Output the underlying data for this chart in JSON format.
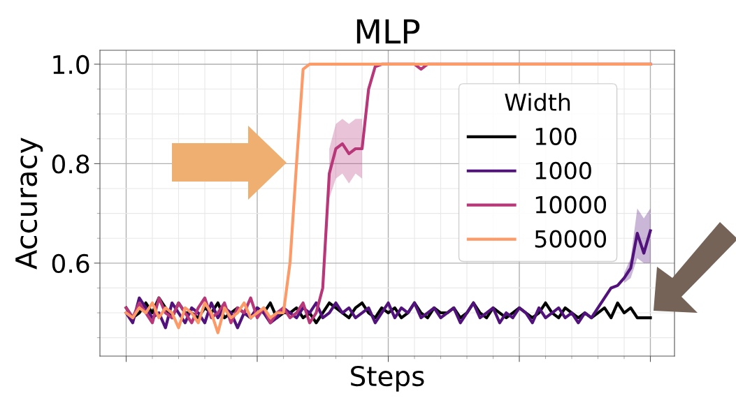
{
  "chart_data": {
    "type": "line",
    "title": "MLP",
    "xlabel": "Steps",
    "ylabel": "Accuracy",
    "legend_title": "Width",
    "categories": [
      null,
      null,
      null,
      null,
      null,
      null,
      null,
      null,
      null,
      null,
      null,
      null,
      null,
      null,
      null,
      null,
      null,
      null,
      null,
      null,
      null,
      null,
      null,
      null,
      null,
      null,
      null,
      null,
      null,
      null,
      null,
      null,
      null,
      null,
      null,
      null,
      null,
      null,
      null,
      null,
      null,
      null,
      null,
      null,
      null,
      null,
      null,
      null,
      null,
      null,
      null,
      null,
      null,
      null,
      null,
      null,
      null,
      null,
      null,
      null,
      null,
      null,
      null,
      null,
      null,
      null,
      null,
      null,
      null,
      null,
      null,
      null,
      null,
      null,
      null,
      null,
      null,
      null,
      null,
      null,
      null
    ],
    "ylim": [
      0.413,
      1.028
    ],
    "yticks": [
      {
        "value": 0.45,
        "label": null
      },
      {
        "value": 0.5,
        "label": null
      },
      {
        "value": 0.55,
        "label": null
      },
      0.6,
      {
        "value": 0.65,
        "label": null
      },
      {
        "value": 0.7,
        "label": null
      },
      {
        "value": 0.75,
        "label": null
      },
      0.8,
      {
        "value": 0.85,
        "label": null
      },
      {
        "value": 0.9,
        "label": null
      },
      {
        "value": 0.95,
        "label": null
      },
      {
        "value": 1.0,
        "label": "1.0"
      }
    ],
    "grid": true,
    "legend": "right",
    "line_style": "solid",
    "marker": "none",
    "series": [
      {
        "name": "100",
        "color": "#000000",
        "values": [
          0.51,
          0.49,
          0.5,
          0.52,
          0.5,
          0.53,
          0.51,
          0.49,
          0.52,
          0.5,
          0.5,
          0.49,
          0.51,
          0.5,
          0.52,
          0.49,
          0.5,
          0.51,
          0.5,
          0.49,
          0.51,
          0.5,
          0.52,
          0.49,
          0.5,
          0.5,
          0.51,
          0.49,
          0.5,
          0.48,
          0.5,
          0.52,
          0.51,
          0.5,
          0.49,
          0.51,
          0.52,
          0.5,
          0.49,
          0.51,
          0.5,
          0.51,
          0.49,
          0.5,
          0.52,
          0.5,
          0.49,
          0.51,
          0.5,
          0.5,
          0.51,
          0.49,
          0.5,
          0.52,
          0.5,
          0.49,
          0.51,
          0.5,
          0.49,
          0.5,
          0.51,
          0.5,
          0.49,
          0.5,
          0.52,
          0.5,
          0.49,
          0.51,
          0.5,
          0.49,
          0.5,
          0.49,
          0.5,
          0.51,
          0.49,
          0.52,
          0.5,
          0.51,
          0.49,
          0.49,
          0.49
        ]
      },
      {
        "name": "1000",
        "color": "#51127c",
        "values": [
          0.5,
          0.48,
          0.53,
          0.51,
          0.49,
          0.5,
          0.47,
          0.52,
          0.5,
          0.48,
          0.51,
          0.5,
          0.48,
          0.52,
          0.49,
          0.51,
          0.5,
          0.47,
          0.5,
          0.49,
          0.51,
          0.5,
          0.48,
          0.49,
          0.51,
          0.5,
          0.49,
          0.51,
          0.5,
          0.52,
          0.49,
          0.5,
          0.52,
          0.5,
          0.51,
          0.49,
          0.5,
          0.51,
          0.48,
          0.5,
          0.52,
          0.49,
          0.51,
          0.5,
          0.52,
          0.49,
          0.5,
          0.51,
          0.49,
          0.5,
          0.51,
          0.48,
          0.5,
          0.52,
          0.49,
          0.5,
          0.51,
          0.48,
          0.5,
          0.49,
          0.51,
          0.5,
          0.48,
          0.51,
          0.49,
          0.5,
          0.51,
          0.49,
          0.5,
          0.48,
          0.5,
          0.49,
          0.51,
          0.53,
          0.55,
          0.555,
          0.57,
          0.59,
          0.66,
          0.62,
          0.665
        ],
        "lower": [
          null,
          null,
          null,
          null,
          null,
          null,
          null,
          null,
          null,
          null,
          null,
          null,
          null,
          null,
          null,
          null,
          null,
          null,
          null,
          null,
          null,
          null,
          null,
          null,
          null,
          null,
          null,
          null,
          null,
          null,
          null,
          null,
          null,
          null,
          null,
          null,
          null,
          null,
          null,
          null,
          null,
          null,
          null,
          null,
          null,
          null,
          null,
          null,
          null,
          null,
          null,
          null,
          null,
          null,
          null,
          null,
          null,
          null,
          null,
          null,
          null,
          null,
          null,
          null,
          null,
          null,
          null,
          null,
          null,
          null,
          null,
          null,
          null,
          null,
          null,
          null,
          0.56,
          0.57,
          0.61,
          0.6,
          0.6
        ],
        "upper": [
          null,
          null,
          null,
          null,
          null,
          null,
          null,
          null,
          null,
          null,
          null,
          null,
          null,
          null,
          null,
          null,
          null,
          null,
          null,
          null,
          null,
          null,
          null,
          null,
          null,
          null,
          null,
          null,
          null,
          null,
          null,
          null,
          null,
          null,
          null,
          null,
          null,
          null,
          null,
          null,
          null,
          null,
          null,
          null,
          null,
          null,
          null,
          null,
          null,
          null,
          null,
          null,
          null,
          null,
          null,
          null,
          null,
          null,
          null,
          null,
          null,
          null,
          null,
          null,
          null,
          null,
          null,
          null,
          null,
          null,
          null,
          null,
          null,
          null,
          null,
          null,
          0.58,
          0.61,
          0.71,
          0.69,
          0.71
        ]
      },
      {
        "name": "10000",
        "color": "#b73779",
        "values": [
          0.51,
          0.49,
          0.52,
          0.5,
          0.48,
          0.53,
          0.5,
          0.49,
          0.52,
          0.5,
          0.48,
          0.51,
          0.53,
          0.49,
          0.5,
          0.52,
          0.48,
          0.51,
          0.5,
          0.53,
          0.49,
          0.51,
          0.48,
          0.5,
          0.51,
          0.49,
          0.5,
          0.52,
          0.48,
          0.5,
          0.55,
          0.78,
          0.83,
          0.84,
          0.82,
          0.83,
          0.83,
          0.95,
          0.995,
          1.0,
          1.0,
          1.0,
          1.0,
          1.0,
          1.0,
          0.99,
          1.0,
          1.0,
          1.0,
          1.0,
          1.0,
          1.0,
          1.0,
          1.0,
          1.0,
          1.0,
          1.0,
          1.0,
          1.0,
          1.0,
          1.0,
          1.0,
          1.0,
          1.0,
          1.0,
          1.0,
          1.0,
          1.0,
          1.0,
          1.0,
          1.0,
          1.0,
          1.0,
          1.0,
          1.0,
          1.0,
          1.0,
          1.0,
          1.0,
          1.0,
          1.0
        ],
        "lower": [
          null,
          null,
          null,
          null,
          null,
          null,
          null,
          null,
          null,
          null,
          null,
          null,
          null,
          null,
          null,
          null,
          null,
          null,
          null,
          null,
          null,
          null,
          null,
          null,
          null,
          null,
          null,
          null,
          null,
          null,
          null,
          0.73,
          0.77,
          0.78,
          0.76,
          0.78,
          0.77,
          null,
          null,
          null,
          null,
          null,
          null,
          null,
          null,
          null,
          null,
          null,
          null,
          null,
          null,
          null,
          null,
          null,
          null,
          null,
          null,
          null,
          null,
          null,
          null,
          null,
          null,
          null,
          null,
          null,
          null,
          null,
          null,
          null,
          null,
          null,
          null,
          null,
          null,
          null,
          null,
          null,
          null,
          null,
          null
        ],
        "upper": [
          null,
          null,
          null,
          null,
          null,
          null,
          null,
          null,
          null,
          null,
          null,
          null,
          null,
          null,
          null,
          null,
          null,
          null,
          null,
          null,
          null,
          null,
          null,
          null,
          null,
          null,
          null,
          null,
          null,
          null,
          null,
          0.83,
          0.88,
          0.89,
          0.88,
          0.89,
          0.89,
          null,
          null,
          null,
          null,
          null,
          null,
          null,
          null,
          null,
          null,
          null,
          null,
          null,
          null,
          null,
          null,
          null,
          null,
          null,
          null,
          null,
          null,
          null,
          null,
          null,
          null,
          null,
          null,
          null,
          null,
          null,
          null,
          null,
          null,
          null,
          null,
          null,
          null,
          null,
          null,
          null,
          null,
          null,
          null
        ]
      },
      {
        "name": "50000",
        "color": "#fc9a68",
        "values": [
          0.5,
          0.49,
          0.51,
          0.5,
          0.52,
          0.49,
          0.51,
          0.5,
          0.47,
          0.51,
          0.5,
          0.48,
          0.52,
          0.5,
          0.46,
          0.51,
          0.49,
          0.5,
          0.52,
          0.49,
          0.5,
          0.51,
          0.49,
          0.5,
          0.5,
          0.6,
          0.8,
          0.99,
          1.0,
          1.0,
          1.0,
          1.0,
          1.0,
          1.0,
          1.0,
          1.0,
          1.0,
          1.0,
          1.0,
          1.0,
          1.0,
          1.0,
          1.0,
          1.0,
          1.0,
          1.0,
          1.0,
          1.0,
          1.0,
          1.0,
          1.0,
          1.0,
          1.0,
          1.0,
          1.0,
          1.0,
          1.0,
          1.0,
          1.0,
          1.0,
          1.0,
          1.0,
          1.0,
          1.0,
          1.0,
          1.0,
          1.0,
          1.0,
          1.0,
          1.0,
          1.0,
          1.0,
          1.0,
          1.0,
          1.0,
          1.0,
          1.0,
          1.0,
          1.0,
          1.0,
          1.0
        ]
      }
    ]
  }
}
